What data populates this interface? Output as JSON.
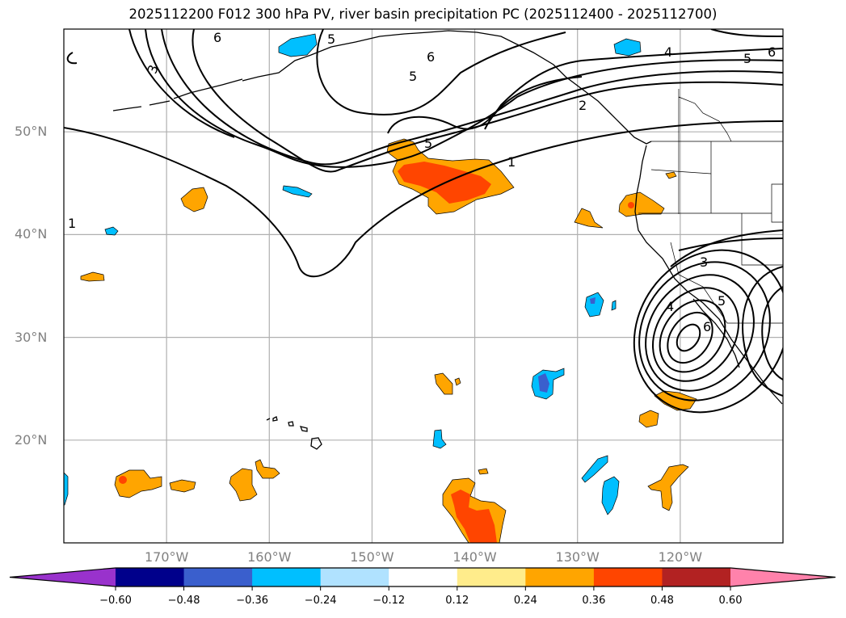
{
  "title": "2025112200 F012 300 hPa PV, river basin precipitation PC (2025112400 - 2025112700)",
  "map": {
    "projection": "PlateCarree",
    "extent": {
      "lon_min": -180,
      "lon_max": -110,
      "lat_min": 10,
      "lat_max": 60
    },
    "lat_ticks": [
      {
        "value": 50,
        "label": "50°N"
      },
      {
        "value": 40,
        "label": "40°N"
      },
      {
        "value": 30,
        "label": "30°N"
      },
      {
        "value": 20,
        "label": "20°N"
      }
    ],
    "lon_ticks": [
      {
        "value": -170,
        "label": "170°W"
      },
      {
        "value": -160,
        "label": "160°W"
      },
      {
        "value": -150,
        "label": "150°W"
      },
      {
        "value": -140,
        "label": "140°W"
      },
      {
        "value": -130,
        "label": "130°W"
      },
      {
        "value": -120,
        "label": "120°W"
      }
    ],
    "contour_field": "300 hPa PV",
    "contour_labels": [
      "1",
      "2",
      "3",
      "4",
      "5",
      "6"
    ],
    "shaded_field": "river basin precipitation PC"
  },
  "colorbar": {
    "extend": "both",
    "boundaries": [
      -0.6,
      -0.48,
      -0.36,
      -0.24,
      -0.12,
      0.12,
      0.24,
      0.36,
      0.48,
      0.6
    ],
    "tick_labels": [
      "−0.60",
      "−0.48",
      "−0.36",
      "−0.24",
      "−0.12",
      "0.12",
      "0.24",
      "0.36",
      "0.48",
      "0.60"
    ],
    "colors": [
      "#9932cc",
      "#00008b",
      "#3a5fcd",
      "#00bfff",
      "#b0e2ff",
      "#ffffff",
      "#ffec8b",
      "#ffa500",
      "#ff4500",
      "#b22222",
      "#ff82ab"
    ]
  }
}
